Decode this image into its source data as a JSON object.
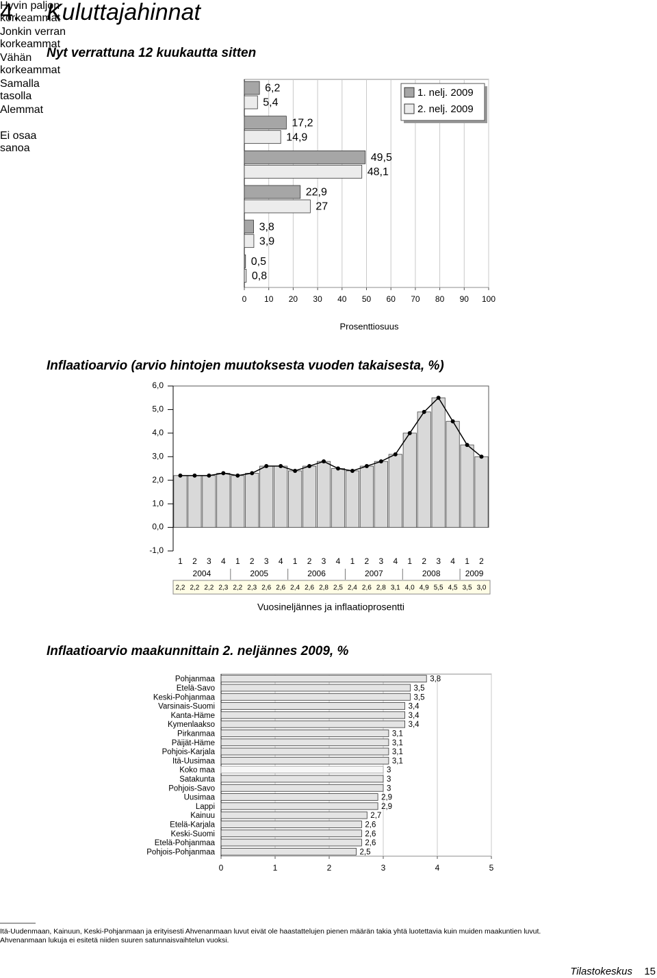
{
  "header": {
    "number": "4.",
    "title": "Kuluttajahinnat"
  },
  "chart_data": [
    {
      "type": "bar",
      "orientation": "horizontal",
      "title": "Nyt verrattuna 12 kuukautta sitten",
      "categories": [
        "Hyvin paljon korkeammat",
        "Jonkin verran korkeammat",
        "Vähän korkeammat",
        "Samalla tasolla",
        "Alemmat",
        "Ei osaa sanoa"
      ],
      "series": [
        {
          "name": "1. nelj. 2009",
          "color": "#a6a6a6",
          "values": [
            6.2,
            17.2,
            49.5,
            22.9,
            3.8,
            0.5
          ],
          "value_labels": [
            "6,2",
            "17,2",
            "49,5",
            "22,9",
            "3,8",
            "0,5"
          ]
        },
        {
          "name": "2. nelj. 2009",
          "color": "#ececec",
          "values": [
            5.4,
            14.9,
            48.1,
            27,
            3.9,
            0.8
          ],
          "value_labels": [
            "5,4",
            "14,9",
            "48,1",
            "27",
            "3,9",
            "0,8"
          ]
        }
      ],
      "xlim": [
        0,
        100
      ],
      "xticks": [
        0,
        10,
        20,
        30,
        40,
        50,
        60,
        70,
        80,
        90,
        100
      ],
      "x_label": "Prosenttiosuus",
      "grid": true,
      "legend": "top-right"
    },
    {
      "type": "bar",
      "orientation": "vertical",
      "line": true,
      "title": "Inflaatioarvio (arvio hintojen muutoksesta vuoden takaisesta, %)",
      "categories": [
        "1",
        "2",
        "3",
        "4",
        "1",
        "2",
        "3",
        "4",
        "1",
        "2",
        "3",
        "4",
        "1",
        "2",
        "3",
        "4",
        "1",
        "2",
        "3",
        "4",
        "1",
        "2"
      ],
      "years": [
        "2004",
        "2005",
        "2006",
        "2007",
        "2008",
        "2009"
      ],
      "values": [
        2.2,
        2.2,
        2.2,
        2.3,
        2.2,
        2.3,
        2.6,
        2.6,
        2.4,
        2.6,
        2.8,
        2.5,
        2.4,
        2.6,
        2.8,
        3.1,
        4.0,
        4.9,
        5.5,
        4.5,
        3.5,
        3.0
      ],
      "value_labels": [
        "2,2",
        "2,2",
        "2,2",
        "2,3",
        "2,2",
        "2,3",
        "2,6",
        "2,6",
        "2,4",
        "2,6",
        "2,8",
        "2,5",
        "2,4",
        "2,6",
        "2,8",
        "3,1",
        "4,0",
        "4,9",
        "5,5",
        "4,5",
        "3,5",
        "3,0"
      ],
      "color": "#d9d9d9",
      "line_color": "#000000",
      "ylim": [
        -1,
        6
      ],
      "yticks": [
        {
          "value": 6,
          "label": "6,0"
        },
        {
          "value": 5,
          "label": "5,0"
        },
        {
          "value": 4,
          "label": "4,0"
        },
        {
          "value": 3,
          "label": "3,0"
        },
        {
          "value": 2,
          "label": "2,0"
        },
        {
          "value": 1,
          "label": "1,0"
        },
        {
          "value": 0,
          "label": "0,0"
        },
        {
          "value": -1,
          "label": "-1,0"
        }
      ],
      "x_label": "Vuosineljännes ja inflaatioprosentti"
    },
    {
      "type": "bar",
      "orientation": "horizontal",
      "title": "Inflaatioarvio maakunnittain 2. neljännes 2009, %",
      "categories": [
        "Pohjanmaa",
        "Etelä-Savo",
        "Keski-Pohjanmaa",
        "Varsinais-Suomi",
        "Kanta-Häme",
        "Kymenlaakso",
        "Pirkanmaa",
        "Päijät-Häme",
        "Pohjois-Karjala",
        "Itä-Uusimaa",
        "Koko maa",
        "Satakunta",
        "Pohjois-Savo",
        "Uusimaa",
        "Lappi",
        "Kainuu",
        "Etelä-Karjala",
        "Keski-Suomi",
        "Etelä-Pohjanmaa",
        "Pohjois-Pohjanmaa"
      ],
      "values": [
        3.8,
        3.5,
        3.5,
        3.4,
        3.4,
        3.4,
        3.1,
        3.1,
        3.1,
        3.1,
        3,
        3,
        3,
        2.9,
        2.9,
        2.7,
        2.6,
        2.6,
        2.6,
        2.5
      ],
      "value_labels": [
        "3,8",
        "3,5",
        "3,5",
        "3,4",
        "3,4",
        "3,4",
        "3,1",
        "3,1",
        "3,1",
        "3,1",
        "3",
        "3",
        "3",
        "2,9",
        "2,9",
        "2,7",
        "2,6",
        "2,6",
        "2,6",
        "2,5"
      ],
      "colors": [
        "#e4e4e4",
        "#e4e4e4",
        "#e4e4e4",
        "#e4e4e4",
        "#e4e4e4",
        "#e4e4e4",
        "#e4e4e4",
        "#e4e4e4",
        "#e4e4e4",
        "#e4e4e4",
        "#f7f7f7",
        "#e4e4e4",
        "#e4e4e4",
        "#e4e4e4",
        "#e4e4e4",
        "#e4e4e4",
        "#e4e4e4",
        "#e4e4e4",
        "#e4e4e4",
        "#e4e4e4"
      ],
      "xlim": [
        0,
        5
      ],
      "xticks": [
        0,
        1,
        2,
        3,
        4,
        5
      ],
      "grid": true
    }
  ],
  "footnote": [
    "Itä-Uudenmaan, Kainuun, Keski-Pohjanmaan ja erityisesti Ahvenanmaan luvut eivät ole haastattelujen pienen määrän takia yhtä luotettavia kuin muiden maakuntien luvut.",
    "Ahvenanmaan lukuja ei esitetä niiden suuren satunnaisvaihtelun vuoksi."
  ],
  "footer": {
    "publisher": "Tilastokeskus",
    "page": "15"
  }
}
